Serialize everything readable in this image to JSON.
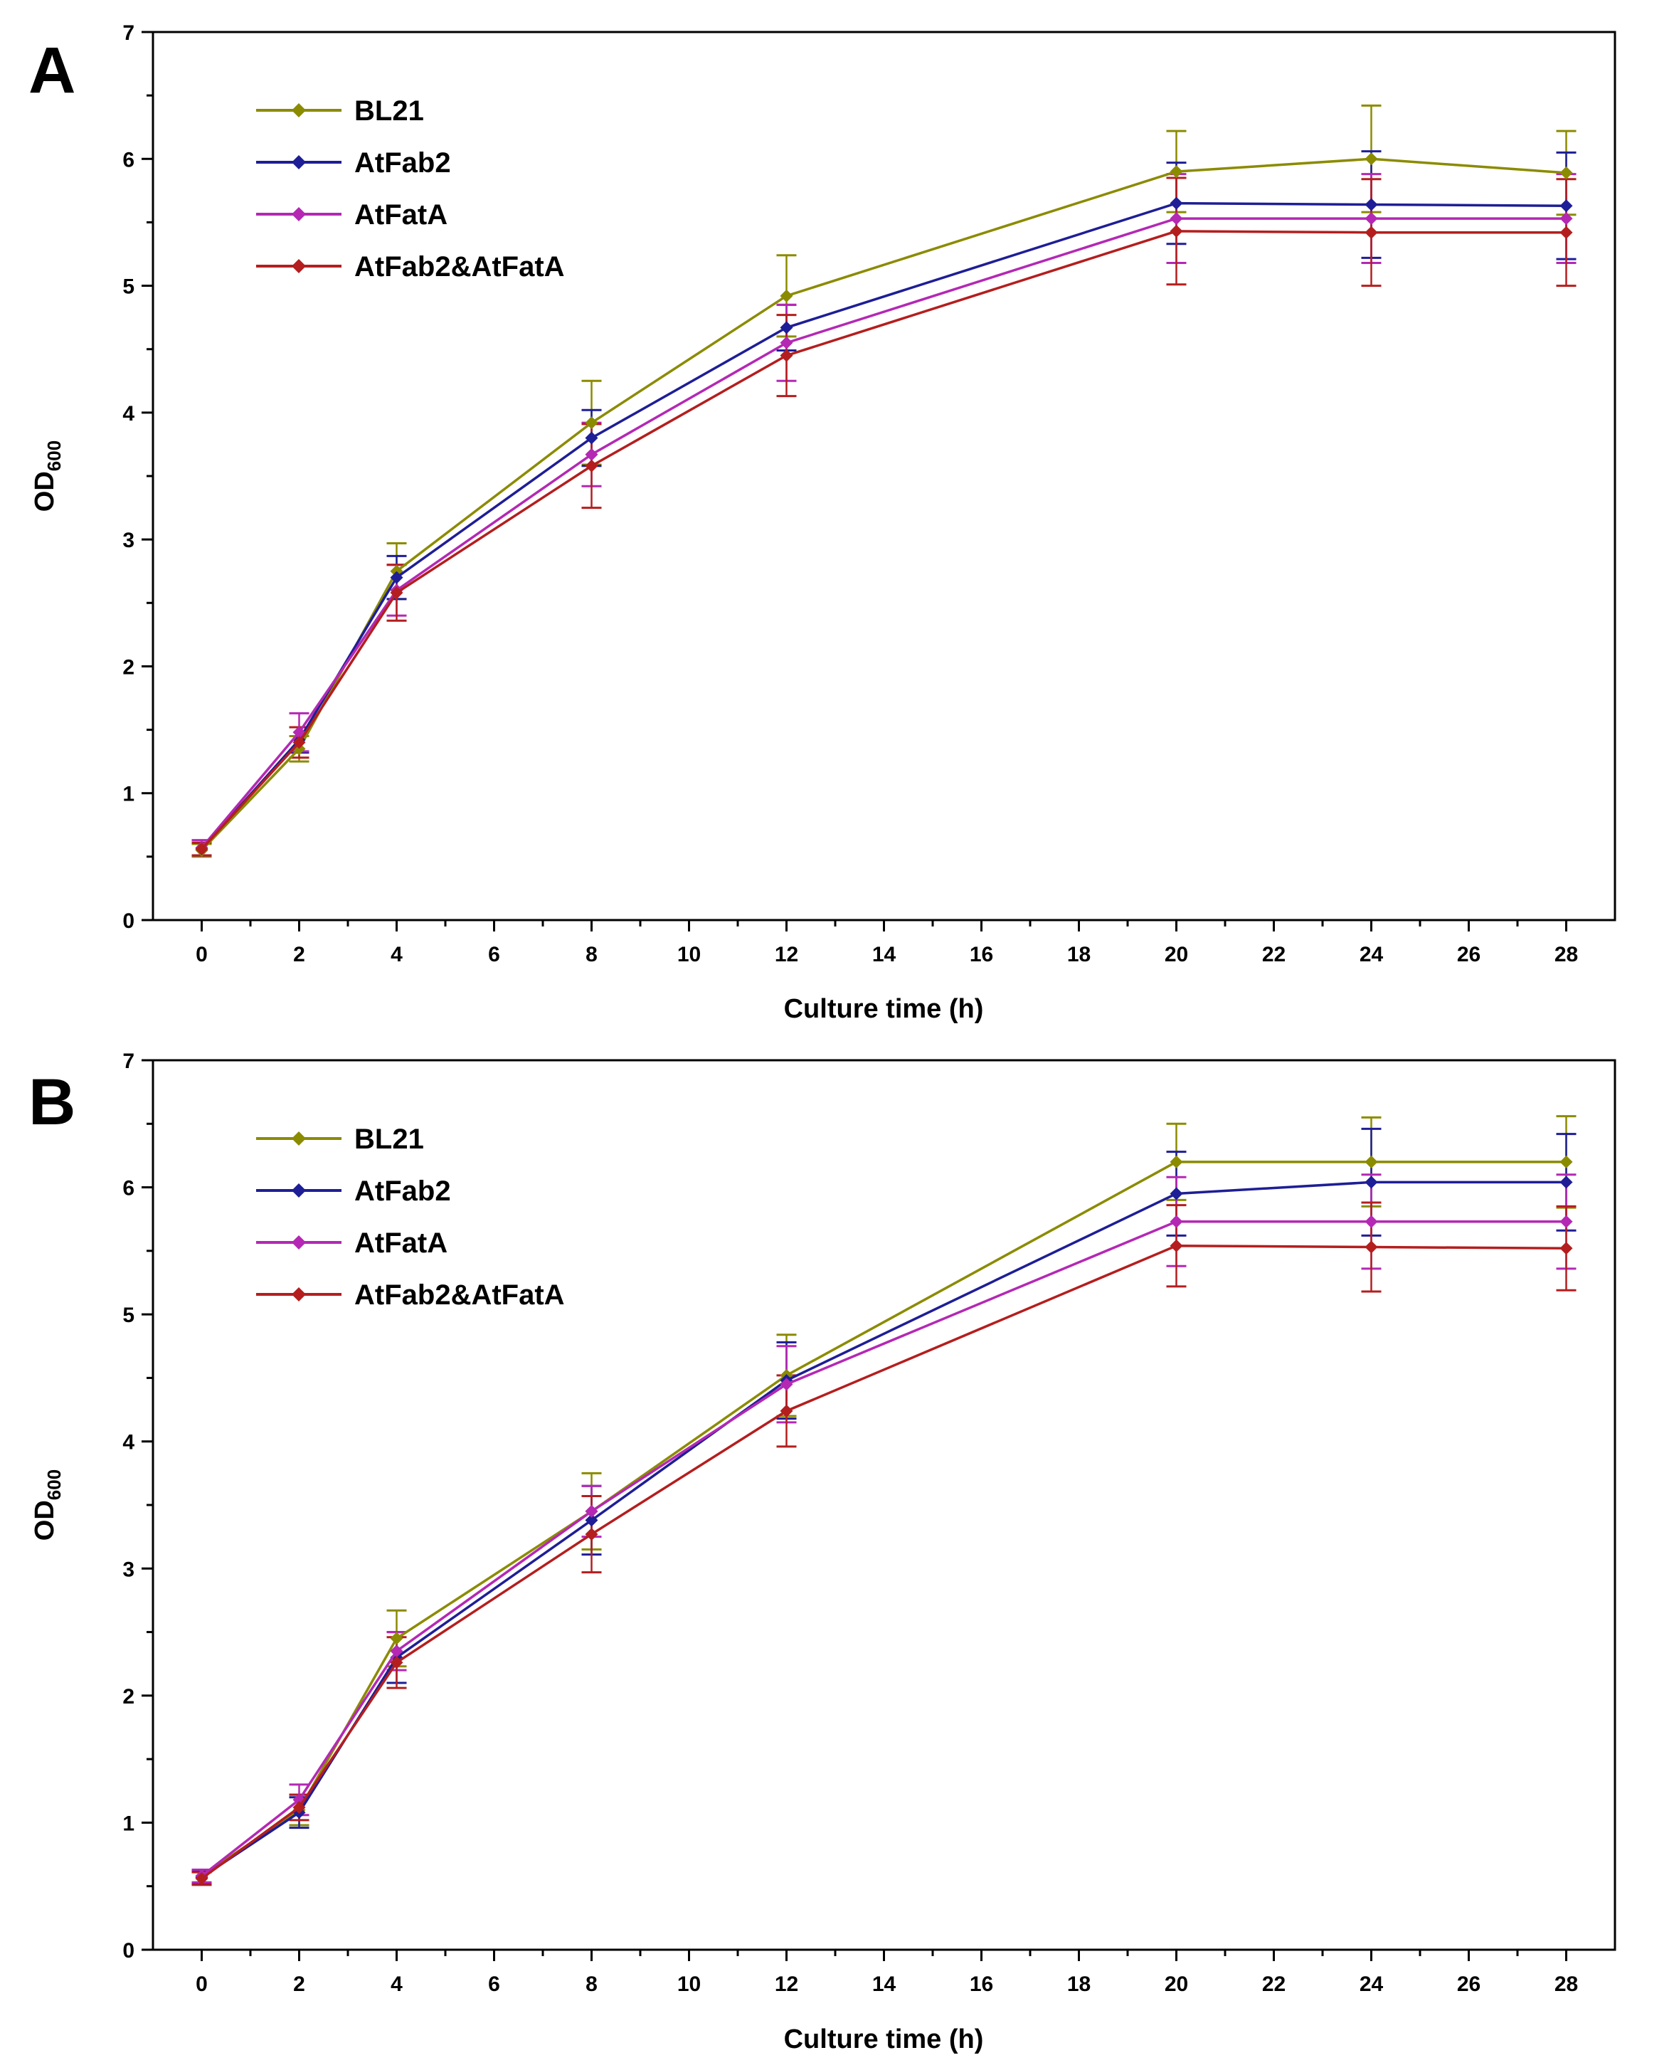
{
  "panels": [
    {
      "panel_label": "A",
      "xlabel": "Culture time (h)",
      "ylabel_main": "OD",
      "ylabel_sub": "600",
      "xticks": [
        "0",
        "2",
        "4",
        "6",
        "8",
        "10",
        "12",
        "14",
        "16",
        "18",
        "20",
        "22",
        "24",
        "26",
        "28"
      ],
      "yticks": [
        "0",
        "1",
        "2",
        "3",
        "4",
        "5",
        "6",
        "7"
      ]
    },
    {
      "panel_label": "B",
      "xlabel": "Culture time (h)",
      "ylabel_main": "OD",
      "ylabel_sub": "600",
      "xticks": [
        "0",
        "2",
        "4",
        "6",
        "8",
        "10",
        "12",
        "14",
        "16",
        "18",
        "20",
        "22",
        "24",
        "26",
        "28"
      ],
      "yticks": [
        "0",
        "1",
        "2",
        "3",
        "4",
        "5",
        "6",
        "7"
      ]
    }
  ],
  "chart_data": [
    {
      "type": "line",
      "xlabel": "Culture time (h)",
      "ylabel": "OD600",
      "xlim": [
        -1,
        29
      ],
      "ylim": [
        0,
        7
      ],
      "grid": false,
      "legend_position": "top-left",
      "x": [
        0,
        2,
        4,
        8,
        12,
        20,
        24,
        28
      ],
      "series": [
        {
          "name": "BL21",
          "color": "#8B8B00",
          "values": [
            0.55,
            1.35,
            2.75,
            3.92,
            4.92,
            5.9,
            6.0,
            5.89
          ],
          "errors": [
            0.05,
            0.1,
            0.22,
            0.33,
            0.32,
            0.32,
            0.42,
            0.33
          ]
        },
        {
          "name": "AtFab2",
          "color": "#1E1E96",
          "values": [
            0.56,
            1.42,
            2.7,
            3.8,
            4.67,
            5.65,
            5.64,
            5.63
          ],
          "errors": [
            0.05,
            0.1,
            0.17,
            0.22,
            0.18,
            0.32,
            0.42,
            0.42
          ]
        },
        {
          "name": "AtFatA",
          "color": "#B428B4",
          "values": [
            0.57,
            1.48,
            2.6,
            3.67,
            4.55,
            5.53,
            5.53,
            5.53
          ],
          "errors": [
            0.06,
            0.15,
            0.2,
            0.25,
            0.3,
            0.35,
            0.35,
            0.35
          ]
        },
        {
          "name": "AtFab2&AtFatA",
          "color": "#B41E1E",
          "values": [
            0.56,
            1.4,
            2.58,
            3.58,
            4.45,
            5.43,
            5.42,
            5.42
          ],
          "errors": [
            0.05,
            0.12,
            0.22,
            0.33,
            0.32,
            0.42,
            0.42,
            0.42
          ]
        }
      ]
    },
    {
      "type": "line",
      "xlabel": "Culture time (h)",
      "ylabel": "OD600",
      "xlim": [
        -1,
        29
      ],
      "ylim": [
        0,
        7
      ],
      "grid": false,
      "legend_position": "top-left",
      "x": [
        0,
        2,
        4,
        8,
        12,
        20,
        24,
        28
      ],
      "series": [
        {
          "name": "BL21",
          "color": "#8B8B00",
          "values": [
            0.58,
            1.1,
            2.45,
            3.45,
            4.52,
            6.2,
            6.2,
            6.2
          ],
          "errors": [
            0.05,
            0.12,
            0.22,
            0.3,
            0.32,
            0.3,
            0.35,
            0.36
          ]
        },
        {
          "name": "AtFab2",
          "color": "#1E1E96",
          "values": [
            0.57,
            1.08,
            2.3,
            3.38,
            4.48,
            5.95,
            6.04,
            6.04
          ],
          "errors": [
            0.05,
            0.12,
            0.2,
            0.27,
            0.3,
            0.33,
            0.42,
            0.38
          ]
        },
        {
          "name": "AtFatA",
          "color": "#B428B4",
          "values": [
            0.58,
            1.18,
            2.35,
            3.45,
            4.45,
            5.73,
            5.73,
            5.73
          ],
          "errors": [
            0.05,
            0.12,
            0.15,
            0.2,
            0.3,
            0.35,
            0.37,
            0.37
          ]
        },
        {
          "name": "AtFab2&AtFatA",
          "color": "#B41E1E",
          "values": [
            0.56,
            1.12,
            2.26,
            3.27,
            4.24,
            5.54,
            5.53,
            5.52
          ],
          "errors": [
            0.05,
            0.1,
            0.2,
            0.3,
            0.28,
            0.32,
            0.35,
            0.33
          ]
        }
      ]
    }
  ]
}
